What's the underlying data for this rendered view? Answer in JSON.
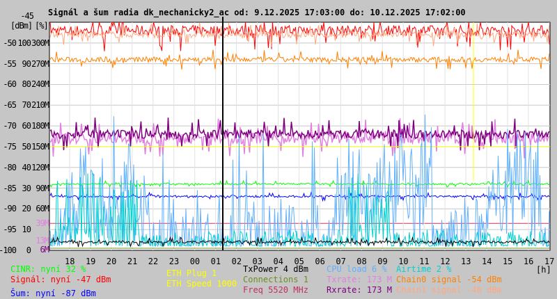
{
  "chart_data": {
    "type": "line",
    "title": "Signál a šum radia dk_nechanicky2_ac od: 9.12.2025 17:03:00 do: 10.12.2025 17:02:00",
    "ylabel_units": [
      "[dBm]",
      "[%]"
    ],
    "ylim": [
      -100,
      -45
    ],
    "y_ticks_dbm": [
      "-45",
      "-50",
      "-55",
      "-60",
      "-65",
      "-70",
      "-75",
      "-80",
      "-85",
      "-90",
      "-95",
      "-100"
    ],
    "y_ticks_pct": [
      "",
      "100",
      "90",
      "80",
      "70",
      "60",
      "50",
      "40",
      "30",
      "20",
      "10",
      "0"
    ],
    "y_ticks_rate": [
      "",
      "300M",
      "270M",
      "240M",
      "210M",
      "180M",
      "150M",
      "120M",
      "90M",
      "60M",
      "",
      ""
    ],
    "rate_markers": [
      {
        "label": "39M",
        "value": 39,
        "color": "#e080e0"
      },
      {
        "label": "13M",
        "value": 13,
        "color": "#e080e0"
      },
      {
        "label": "6M",
        "value": 6,
        "color": "#800080"
      }
    ],
    "x_ticks": [
      "18",
      "19",
      "20",
      "21",
      "22",
      "23",
      "00",
      "01",
      "02",
      "03",
      "04",
      "05",
      "06",
      "07",
      "08",
      "09",
      "10",
      "11",
      "12",
      "13",
      "14",
      "15",
      "16",
      "17"
    ],
    "x_unit": "[h]",
    "grid": true,
    "series": [
      {
        "name": "Signál",
        "color": "#ff0000",
        "level_dbm": -47,
        "noise": 2.5
      },
      {
        "name": "Chain1 signal",
        "color": "#ffa880",
        "level_dbm": -48,
        "noise": 1.5
      },
      {
        "name": "Chain0 signal",
        "color": "#ff8000",
        "level_dbm": -54,
        "noise": 1.2
      },
      {
        "name": "Txrate",
        "color": "#e080e0",
        "level_dbm": -73,
        "noise": 2.5
      },
      {
        "name": "Rxrate",
        "color": "#800080",
        "level_dbm": -72,
        "noise": 2
      },
      {
        "name": "ETH Speed",
        "color": "#ffff00",
        "level_dbm": -75,
        "noise": 0
      },
      {
        "name": "CINR",
        "color": "#00ff00",
        "level_dbm": -84,
        "noise": 0.4
      },
      {
        "name": "Šum",
        "color": "#0000ff",
        "level_dbm": -87,
        "noise": 0.5
      },
      {
        "name": "CPU load",
        "color": "#60b0ff",
        "level_dbm": -94,
        "noise": 5
      },
      {
        "name": "Airtime",
        "color": "#00d0d0",
        "level_dbm": -97,
        "noise": 2.5
      },
      {
        "name": "TxPower",
        "color": "#000000",
        "level_dbm": -98,
        "noise": 0.6
      },
      {
        "name": "Connections",
        "color": "#6b8e23",
        "level_dbm": -99.5,
        "noise": 0
      }
    ]
  },
  "legend": {
    "cinr": "CINR: nyní 32 %",
    "signal": "Signál: nyní -47 dBm",
    "noise": "Šum: nyní -87 dBm",
    "eth_plug": "ETH Plug 1",
    "eth_speed": "ETH Speed 1000",
    "txpower": "TxPower 4 dBm",
    "connections": "Connections 1",
    "freq": "Freq 5520 MHz",
    "cpu": "CPU load 6 %",
    "txrate": "Txrate: 173 M",
    "rxrate": "Rxrate: 173 M",
    "airtime": "Airtime 2 %",
    "chain0": "Chain0 signal -54 dBm",
    "chain1": "Chain1 signal -48 dBm"
  }
}
